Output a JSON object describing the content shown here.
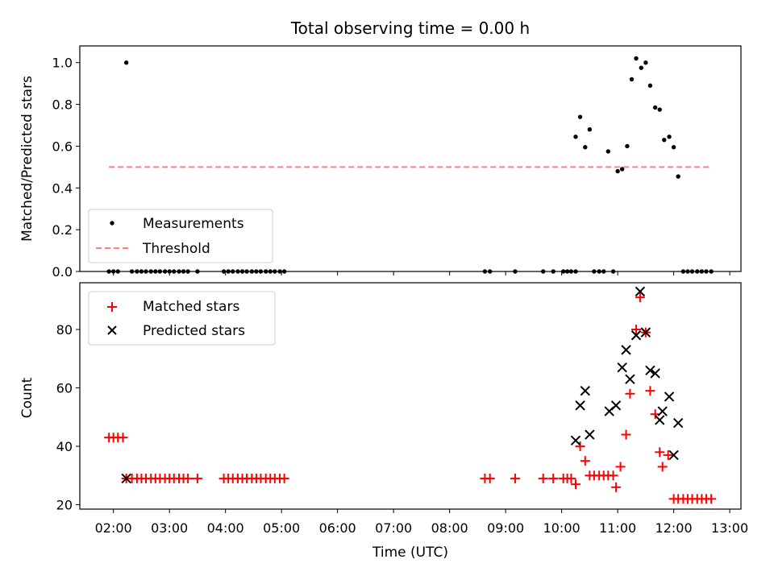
{
  "chart_data": {
    "title": "Total observing time = 0.00 h",
    "type": "scatter",
    "xlabel": "Time (UTC)",
    "x_ticks": [
      "02:00",
      "03:00",
      "04:00",
      "05:00",
      "06:00",
      "07:00",
      "08:00",
      "09:00",
      "10:00",
      "11:00",
      "12:00",
      "13:00"
    ],
    "panels": [
      {
        "ylabel": "Matched/Predicted stars",
        "ylim": [
          0,
          1.08
        ],
        "y_ticks": [
          "0.0",
          "0.2",
          "0.4",
          "0.6",
          "0.8",
          "1.0"
        ],
        "legend_position": "lower-left",
        "series": [
          {
            "name": "Measurements",
            "type": "scatter",
            "color": "#000000",
            "points": [
              [
                1.92,
                0
              ],
              [
                2.0,
                0
              ],
              [
                2.08,
                0
              ],
              [
                2.23,
                1.0
              ],
              [
                2.33,
                0
              ],
              [
                2.42,
                0
              ],
              [
                2.5,
                0
              ],
              [
                2.58,
                0
              ],
              [
                2.67,
                0
              ],
              [
                2.75,
                0
              ],
              [
                2.83,
                0
              ],
              [
                2.92,
                0
              ],
              [
                3.0,
                0
              ],
              [
                3.08,
                0
              ],
              [
                3.17,
                0
              ],
              [
                3.25,
                0
              ],
              [
                3.33,
                0
              ],
              [
                3.5,
                0
              ],
              [
                3.97,
                0
              ],
              [
                4.05,
                0
              ],
              [
                4.13,
                0
              ],
              [
                4.22,
                0
              ],
              [
                4.3,
                0
              ],
              [
                4.38,
                0
              ],
              [
                4.47,
                0
              ],
              [
                4.55,
                0
              ],
              [
                4.63,
                0
              ],
              [
                4.72,
                0
              ],
              [
                4.8,
                0
              ],
              [
                4.88,
                0
              ],
              [
                4.97,
                0
              ],
              [
                5.05,
                0
              ],
              [
                8.63,
                0
              ],
              [
                8.72,
                0
              ],
              [
                9.17,
                0
              ],
              [
                9.67,
                0
              ],
              [
                9.85,
                0
              ],
              [
                10.03,
                0
              ],
              [
                10.1,
                0
              ],
              [
                10.17,
                0
              ],
              [
                10.25,
                0
              ],
              [
                10.25,
                0.645
              ],
              [
                10.33,
                0.74
              ],
              [
                10.42,
                0.595
              ],
              [
                10.5,
                0.68
              ],
              [
                10.58,
                0
              ],
              [
                10.67,
                0
              ],
              [
                10.75,
                0
              ],
              [
                10.83,
                0.575
              ],
              [
                10.92,
                0
              ],
              [
                11.0,
                0.48
              ],
              [
                11.08,
                0.49
              ],
              [
                11.17,
                0.6
              ],
              [
                11.25,
                0.92
              ],
              [
                11.33,
                1.02
              ],
              [
                11.42,
                0.975
              ],
              [
                11.5,
                1.0
              ],
              [
                11.58,
                0.89
              ],
              [
                11.67,
                0.785
              ],
              [
                11.75,
                0.775
              ],
              [
                11.83,
                0.63
              ],
              [
                11.92,
                0.645
              ],
              [
                12.0,
                0.595
              ],
              [
                12.08,
                0.455
              ],
              [
                12.17,
                0
              ],
              [
                12.25,
                0
              ],
              [
                12.33,
                0
              ],
              [
                12.42,
                0
              ],
              [
                12.5,
                0
              ],
              [
                12.58,
                0
              ],
              [
                12.67,
                0
              ]
            ]
          },
          {
            "name": "Threshold",
            "type": "line",
            "style": "dashed",
            "color": "#ff7f7f",
            "x": [
              1.92,
              12.67
            ],
            "y": [
              0.5,
              0.5
            ]
          }
        ]
      },
      {
        "ylabel": "Count",
        "ylim": [
          18.5,
          96
        ],
        "y_ticks": [
          "20",
          "40",
          "60",
          "80"
        ],
        "legend_position": "upper-left",
        "series": [
          {
            "name": "Matched stars",
            "type": "scatter",
            "marker": "+",
            "color": "#ff0000",
            "points": [
              [
                1.92,
                43
              ],
              [
                2.0,
                43
              ],
              [
                2.08,
                43
              ],
              [
                2.17,
                43
              ],
              [
                2.23,
                29
              ],
              [
                2.33,
                29
              ],
              [
                2.42,
                29
              ],
              [
                2.5,
                29
              ],
              [
                2.58,
                29
              ],
              [
                2.67,
                29
              ],
              [
                2.75,
                29
              ],
              [
                2.83,
                29
              ],
              [
                2.92,
                29
              ],
              [
                3.0,
                29
              ],
              [
                3.08,
                29
              ],
              [
                3.17,
                29
              ],
              [
                3.25,
                29
              ],
              [
                3.33,
                29
              ],
              [
                3.5,
                29
              ],
              [
                3.97,
                29
              ],
              [
                4.05,
                29
              ],
              [
                4.13,
                29
              ],
              [
                4.22,
                29
              ],
              [
                4.3,
                29
              ],
              [
                4.38,
                29
              ],
              [
                4.47,
                29
              ],
              [
                4.55,
                29
              ],
              [
                4.63,
                29
              ],
              [
                4.72,
                29
              ],
              [
                4.8,
                29
              ],
              [
                4.88,
                29
              ],
              [
                4.97,
                29
              ],
              [
                5.05,
                29
              ],
              [
                8.63,
                29
              ],
              [
                8.72,
                29
              ],
              [
                9.17,
                29
              ],
              [
                9.67,
                29
              ],
              [
                9.85,
                29
              ],
              [
                10.03,
                29
              ],
              [
                10.1,
                29
              ],
              [
                10.17,
                29
              ],
              [
                10.25,
                27
              ],
              [
                10.33,
                40
              ],
              [
                10.42,
                35
              ],
              [
                10.5,
                30
              ],
              [
                10.58,
                30
              ],
              [
                10.67,
                30
              ],
              [
                10.75,
                30
              ],
              [
                10.83,
                30
              ],
              [
                10.92,
                30
              ],
              [
                10.97,
                26
              ],
              [
                11.05,
                33
              ],
              [
                11.15,
                44
              ],
              [
                11.22,
                58
              ],
              [
                11.33,
                80
              ],
              [
                11.4,
                91
              ],
              [
                11.5,
                79
              ],
              [
                11.58,
                59
              ],
              [
                11.67,
                51
              ],
              [
                11.75,
                38
              ],
              [
                11.8,
                33
              ],
              [
                11.9,
                37
              ],
              [
                12.0,
                22
              ],
              [
                12.08,
                22
              ],
              [
                12.17,
                22
              ],
              [
                12.25,
                22
              ],
              [
                12.33,
                22
              ],
              [
                12.42,
                22
              ],
              [
                12.5,
                22
              ],
              [
                12.58,
                22
              ],
              [
                12.67,
                22
              ]
            ]
          },
          {
            "name": "Predicted stars",
            "type": "scatter",
            "marker": "x",
            "color": "#000000",
            "points": [
              [
                2.23,
                29
              ],
              [
                10.25,
                42
              ],
              [
                10.33,
                54
              ],
              [
                10.42,
                59
              ],
              [
                10.5,
                44
              ],
              [
                10.85,
                52
              ],
              [
                10.97,
                54
              ],
              [
                11.08,
                67
              ],
              [
                11.15,
                73
              ],
              [
                11.22,
                63
              ],
              [
                11.33,
                78
              ],
              [
                11.4,
                93
              ],
              [
                11.5,
                79
              ],
              [
                11.58,
                66
              ],
              [
                11.67,
                65
              ],
              [
                11.75,
                49
              ],
              [
                11.8,
                52
              ],
              [
                11.92,
                57
              ],
              [
                12.0,
                37
              ],
              [
                12.08,
                48
              ]
            ]
          }
        ]
      }
    ]
  }
}
